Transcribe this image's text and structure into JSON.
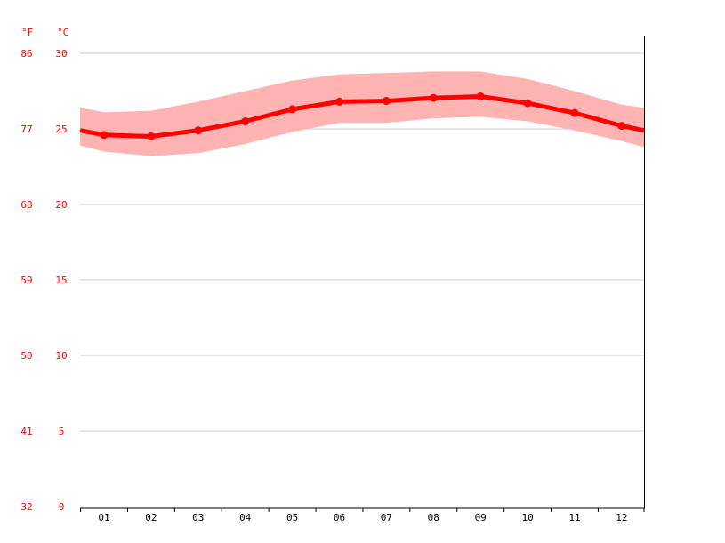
{
  "chart_data": {
    "type": "line",
    "title": "",
    "xlabel": "",
    "ylabel": "",
    "y_units": {
      "left": "°F",
      "right": "°C"
    },
    "categories": [
      "01",
      "02",
      "03",
      "04",
      "05",
      "06",
      "07",
      "08",
      "09",
      "10",
      "11",
      "12"
    ],
    "series": [
      {
        "values": [
          24.6,
          24.5,
          24.9,
          25.5,
          26.3,
          26.8,
          26.85,
          27.05,
          27.15,
          26.7,
          26.05,
          25.2
        ],
        "color": "#ff0000"
      }
    ],
    "range_band": {
      "upper": [
        26.1,
        26.2,
        26.8,
        27.5,
        28.2,
        28.6,
        28.7,
        28.8,
        28.8,
        28.3,
        27.5,
        26.6
      ],
      "lower": [
        23.5,
        23.2,
        23.4,
        24.0,
        24.8,
        25.4,
        25.4,
        25.7,
        25.8,
        25.5,
        24.9,
        24.2
      ],
      "color": "#ffb3b3"
    },
    "edge_values": {
      "start": 24.9,
      "end": 24.9,
      "upper_start": 26.4,
      "upper_end": 26.4,
      "lower_start": 23.9,
      "lower_end": 23.8
    },
    "ylim": [
      0,
      30
    ],
    "yticks_c": [
      "0",
      "5",
      "10",
      "15",
      "20",
      "25",
      "30"
    ],
    "yticks_f": [
      "32",
      "41",
      "50",
      "59",
      "68",
      "77",
      "86"
    ],
    "grid": true,
    "legend": "none",
    "colors": {
      "line": "#ff0000",
      "band": "#ffb3b3",
      "grid": "#cccccc",
      "label": "#ff0000",
      "tick_text": "#000000",
      "axis": "#000000"
    }
  }
}
